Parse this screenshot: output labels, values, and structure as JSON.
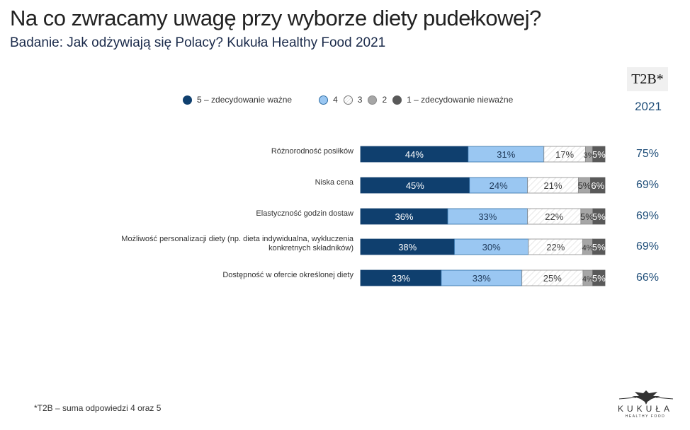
{
  "header": {
    "title": "Na co zwracamy uwagę przy wyborze diety pudełkowej?",
    "subtitle": "Badanie: Jak odżywiają się Polacy? Kukuła Healthy Food 2021"
  },
  "t2b_header": {
    "label": "T2B*",
    "year": "2021"
  },
  "footnote": "*T2B – suma odpowiedzi 4 oraz 5",
  "logo": {
    "name": "KUKUŁA",
    "sub": "HEALTHY FOOD"
  },
  "colors": {
    "s5": "#0f3f6e",
    "s4": "#9ac7f2",
    "s3": "#ffffff",
    "s2": "#a6a6a6",
    "s1": "#595959",
    "t2b": "#1f4e79"
  },
  "chart_data": {
    "type": "bar",
    "orientation": "horizontal-stacked-100",
    "title": "Na co zwracamy uwagę przy wyborze diety pudełkowej?",
    "subtitle": "Badanie: Jak odżywiają się Polacy? Kukuła Healthy Food 2021",
    "xlim": [
      0,
      100
    ],
    "legend_position": "top",
    "categories": [
      "Różnorodność posiłków",
      "Niska cena",
      "Elastyczność godzin dostaw",
      "Możliwość personalizacji diety (np. dieta indywidualna, wykluczenia konkretnych składników)",
      "Dostępność w ofercie określonej diety"
    ],
    "category_lines": [
      [
        "Różnorodność posiłków"
      ],
      [
        "Niska cena"
      ],
      [
        "Elastyczność godzin dostaw"
      ],
      [
        "Możliwość personalizacji diety (np. dieta indywidualna, wykluczenia",
        "konkretnych składników)"
      ],
      [
        "Dostępność w ofercie określonej diety"
      ]
    ],
    "series": [
      {
        "name": "5 – zdecydowanie ważne",
        "values": [
          44,
          45,
          36,
          38,
          33
        ]
      },
      {
        "name": "4",
        "values": [
          31,
          24,
          33,
          30,
          33
        ]
      },
      {
        "name": "3",
        "values": [
          17,
          21,
          22,
          22,
          25
        ]
      },
      {
        "name": "2",
        "values": [
          3,
          5,
          5,
          4,
          4
        ]
      },
      {
        "name": "1 – zdecydowanie nieważne",
        "values": [
          5,
          6,
          5,
          5,
          5
        ]
      }
    ],
    "t2b": {
      "label": "T2B*",
      "year": "2021",
      "values": [
        "75%",
        "69%",
        "69%",
        "69%",
        "66%"
      ]
    }
  }
}
